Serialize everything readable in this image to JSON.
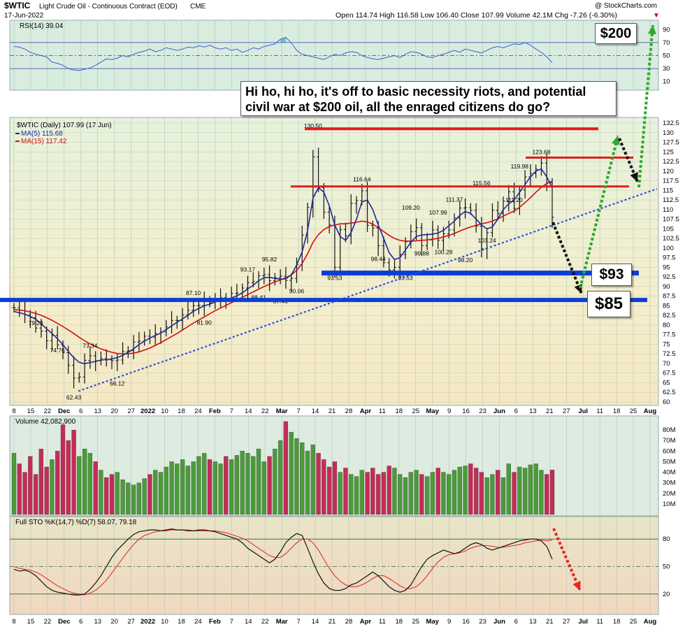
{
  "header": {
    "symbol": "$WTIC",
    "description": "Light Crude Oil - Continuous Contract (EOD)",
    "exchange": "CME",
    "date": "17-Jun-2022",
    "watermark": "@ StockCharts.com",
    "ohlc": "Open 114.74  High 116.58  Low 106.40  Close 107.99  Volume 42.1M  Chg -7.26 (-6.30%)",
    "chg_marker": "▼"
  },
  "annotations": {
    "main": "Hi ho, hi ho, it's off to basic necessity riots, and potential civil war at $200 oil, all the enraged citizens do go?",
    "target_200": "$200",
    "level_93": "$93",
    "level_85": "$85"
  },
  "colors": {
    "rsi_bg": "#d8ece0",
    "price_bg": "#f3eed0",
    "volume_bg": "#ddebe0",
    "sto_bg": "#f2dcc4",
    "ma5": "#1c2a9a",
    "ma15": "#d01010",
    "resistance": "#e31b1b",
    "support": "#0a3fd6",
    "trendline": "#2a4fd8",
    "up_arrow": "#2ea82e",
    "down_arrow": "#111111",
    "sto_arrow": "#e52626",
    "vol_up": "#4c9a3c",
    "vol_down": "#c52c57"
  },
  "chart_data": [
    {
      "type": "line",
      "name": "rsi_panel",
      "legend": "RSI(14) 39.04",
      "ylim": [
        0,
        100
      ],
      "y_ticks": [
        90,
        70,
        50,
        30,
        10
      ],
      "ref_lines": [
        70,
        50,
        30
      ],
      "values": [
        64,
        63,
        60,
        55,
        52,
        50,
        48,
        40,
        38,
        35,
        30,
        28,
        27,
        29,
        31,
        35,
        40,
        45,
        44,
        46,
        50,
        48,
        52,
        55,
        57,
        60,
        56,
        58,
        62,
        60,
        58,
        60,
        63,
        62,
        65,
        63,
        66,
        62,
        60,
        62,
        58,
        60,
        55,
        58,
        62,
        60,
        64,
        66,
        68,
        75,
        78,
        70,
        58,
        52,
        50,
        48,
        46,
        44,
        48,
        52,
        50,
        54,
        56,
        55,
        50,
        47,
        45,
        44,
        46,
        48,
        50,
        47,
        52,
        56,
        55,
        52,
        48,
        47,
        50,
        52,
        55,
        58,
        55,
        60,
        58,
        56,
        54,
        58,
        62,
        64,
        62,
        65,
        68,
        67,
        70,
        66,
        60,
        55,
        48,
        39.04
      ]
    },
    {
      "type": "line",
      "name": "price_panel",
      "legend": [
        "$WTIC (Daily) 107.99 (17 Jun)",
        "MA(5) 115.68",
        "MA(15) 117.42"
      ],
      "ylim": [
        60.0,
        132.5
      ],
      "y_ticks": [
        132.5,
        130.0,
        127.5,
        125.0,
        122.5,
        120.0,
        117.5,
        115.0,
        112.5,
        110.0,
        107.5,
        105.0,
        102.5,
        100.0,
        97.5,
        95.0,
        92.5,
        90.0,
        87.5,
        85.0,
        82.5,
        80.0,
        77.5,
        75.0,
        72.5,
        70.0,
        67.5,
        65.0,
        62.5,
        60.0
      ],
      "x_tick_labels": [
        "8",
        "15",
        "22",
        "Dec",
        "6",
        "13",
        "20",
        "27",
        "2022",
        "10",
        "18",
        "24",
        "Feb",
        "7",
        "14",
        "22",
        "Mar",
        "7",
        "14",
        "21",
        "28",
        "Apr",
        "11",
        "18",
        "25",
        "May",
        "9",
        "16",
        "23",
        "Jun",
        "6",
        "13",
        "21",
        "27",
        "Jul",
        "11",
        "18",
        "25",
        "Aug"
      ],
      "close": [
        84.5,
        83.8,
        82.7,
        81.9,
        79.2,
        78.4,
        75.9,
        77.3,
        74.8,
        72.8,
        69.5,
        66.2,
        66.5,
        70.8,
        72.0,
        70.7,
        71.3,
        70.9,
        70.7,
        70.9,
        73.1,
        73.3,
        75.6,
        75.8,
        77.1,
        76.8,
        77.8,
        78.2,
        79.5,
        81.2,
        81.2,
        82.6,
        83.8,
        85.0,
        85.1,
        86.3,
        85.8,
        86.5,
        87.1,
        86.9,
        88.2,
        88.3,
        89.6,
        91.0,
        91.3,
        92.8,
        93.1,
        91.5,
        92.3,
        92.7,
        91.6,
        92.1,
        95.7,
        103.4,
        110.6,
        123.7,
        115.7,
        109.3,
        106.0,
        95.0,
        104.8,
        103.2,
        111.6,
        112.3,
        114.9,
        105.9,
        105.2,
        100.6,
        96.2,
        94.3,
        95.0,
        98.3,
        101.6,
        104.3,
        105.3,
        100.6,
        102.1,
        104.7,
        102.0,
        103.7,
        104.7,
        107.8,
        110.4,
        110.5,
        109.8,
        105.7,
        99.8,
        104.0,
        109.8,
        109.0,
        112.2,
        114.6,
        110.3,
        115.1,
        118.5,
        119.4,
        120.5,
        122.1,
        117.0,
        107.99
      ],
      "ma5": [
        83.5,
        83.2,
        82.8,
        82.2,
        81.5,
        80.3,
        79.0,
        77.8,
        76.4,
        74.9,
        73.1,
        71.5,
        70.3,
        69.9,
        70.3,
        70.5,
        70.9,
        71.0,
        71.2,
        71.5,
        72.1,
        72.9,
        73.8,
        74.9,
        75.8,
        76.6,
        77.3,
        77.9,
        78.8,
        79.8,
        80.7,
        81.6,
        82.5,
        83.6,
        84.3,
        85.0,
        85.4,
        86.0,
        86.4,
        86.6,
        87.0,
        87.6,
        88.3,
        89.4,
        90.3,
        91.5,
        92.3,
        92.4,
        92.1,
        91.9,
        92.0,
        93.0,
        95.6,
        99.0,
        104.5,
        113.0,
        115.7,
        114.5,
        111.0,
        106.0,
        103.0,
        102.0,
        104.0,
        107.5,
        112.0,
        112.5,
        110.0,
        106.0,
        102.5,
        98.8,
        97.0,
        97.5,
        99.5,
        101.5,
        103.0,
        103.4,
        103.5,
        103.6,
        103.9,
        104.6,
        105.8,
        107.0,
        108.5,
        109.5,
        109.0,
        107.5,
        106.0,
        105.0,
        105.5,
        107.5,
        110.0,
        111.5,
        112.5,
        114.5,
        116.5,
        118.5,
        120.0,
        120.6,
        118.5,
        115.68
      ],
      "ma15": [
        84.0,
        83.9,
        83.7,
        83.4,
        83.0,
        82.5,
        81.9,
        81.2,
        80.4,
        79.6,
        78.7,
        77.8,
        76.8,
        75.9,
        75.1,
        74.4,
        73.8,
        73.3,
        72.9,
        72.6,
        72.5,
        72.5,
        72.7,
        73.0,
        73.5,
        74.0,
        74.7,
        75.4,
        76.2,
        77.0,
        77.8,
        78.7,
        79.6,
        80.5,
        81.3,
        82.1,
        82.9,
        83.7,
        84.4,
        85.1,
        85.8,
        86.5,
        87.2,
        87.9,
        88.6,
        89.3,
        90.0,
        90.6,
        91.2,
        91.7,
        92.3,
        93.0,
        94.2,
        96.0,
        98.5,
        101.5,
        103.5,
        104.8,
        105.6,
        106.0,
        106.3,
        106.3,
        106.5,
        106.7,
        107.0,
        106.8,
        106.2,
        105.3,
        104.3,
        103.3,
        102.5,
        102.0,
        101.8,
        101.8,
        101.9,
        102.0,
        102.1,
        102.3,
        102.5,
        102.9,
        103.3,
        103.8,
        104.4,
        105.0,
        105.5,
        105.9,
        106.3,
        106.6,
        107.0,
        107.6,
        108.3,
        109.0,
        109.6,
        110.6,
        111.8,
        113.1,
        114.5,
        115.8,
        116.8,
        117.42
      ],
      "value_labels": [
        {
          "index": 4,
          "text": "79.23"
        },
        {
          "index": 8,
          "text": "74.76"
        },
        {
          "index": 11,
          "text": "62.43"
        },
        {
          "index": 14,
          "text": "73.34"
        },
        {
          "index": 19,
          "text": "66.12"
        },
        {
          "index": 33,
          "text": "87.10"
        },
        {
          "index": 35,
          "text": "81.90"
        },
        {
          "index": 43,
          "text": "93.17"
        },
        {
          "index": 45,
          "text": "88.41"
        },
        {
          "index": 47,
          "text": "95.82"
        },
        {
          "index": 49,
          "text": "87.46"
        },
        {
          "index": 52,
          "text": "90.06"
        },
        {
          "index": 55,
          "text": "130.50"
        },
        {
          "index": 59,
          "text": "93.53"
        },
        {
          "index": 64,
          "text": "116.64"
        },
        {
          "index": 67,
          "text": "98.44"
        },
        {
          "index": 73,
          "text": "109.20"
        },
        {
          "index": 72,
          "text": "93.53"
        },
        {
          "index": 75,
          "text": "99.88"
        },
        {
          "index": 78,
          "text": "107.99"
        },
        {
          "index": 79,
          "text": "100.28"
        },
        {
          "index": 81,
          "text": "111.37"
        },
        {
          "index": 83,
          "text": "98.20"
        },
        {
          "index": 86,
          "text": "115.56"
        },
        {
          "index": 87,
          "text": "103.24"
        },
        {
          "index": 93,
          "text": "119.98"
        },
        {
          "index": 92,
          "text": "111.20"
        },
        {
          "index": 97,
          "text": "123.68"
        }
      ],
      "levels": {
        "resistance": [
          131.0,
          123.5,
          116.0
        ],
        "support": [
          93.5,
          86.5
        ]
      }
    },
    {
      "type": "bar",
      "name": "volume_panel",
      "legend": "Volume 42,082,900",
      "ylim": [
        0,
        90
      ],
      "y_tick_labels": [
        "80M",
        "70M",
        "60M",
        "50M",
        "40M",
        "30M",
        "20M",
        "10M"
      ],
      "y_ticks": [
        80,
        70,
        60,
        50,
        40,
        30,
        20,
        10
      ],
      "values": [
        58,
        48,
        40,
        55,
        38,
        62,
        45,
        52,
        60,
        85,
        70,
        80,
        55,
        62,
        58,
        50,
        42,
        35,
        38,
        40,
        33,
        30,
        28,
        30,
        34,
        38,
        42,
        40,
        45,
        50,
        48,
        52,
        46,
        50,
        55,
        58,
        52,
        50,
        48,
        55,
        52,
        56,
        60,
        58,
        55,
        62,
        50,
        55,
        62,
        70,
        88,
        78,
        72,
        68,
        60,
        66,
        58,
        52,
        45,
        50,
        40,
        44,
        38,
        36,
        42,
        40,
        44,
        38,
        40,
        46,
        44,
        38,
        35,
        40,
        42,
        38,
        36,
        40,
        44,
        40,
        38,
        42,
        45,
        46,
        48,
        44,
        40,
        35,
        38,
        42,
        35,
        48,
        40,
        45,
        44,
        47,
        48,
        42,
        38,
        42.1
      ]
    },
    {
      "type": "line",
      "name": "sto_panel",
      "legend": "Full STO %K(14,7) %D(7) 58.07, 79.18",
      "ylim": [
        0,
        100
      ],
      "y_ticks": [
        80,
        50,
        20
      ],
      "k": [
        47,
        45,
        46,
        44,
        40,
        34,
        28,
        24,
        22,
        21,
        20,
        19,
        19,
        20,
        25,
        32,
        40,
        50,
        60,
        68,
        74,
        80,
        85,
        88,
        89,
        90,
        90,
        89,
        90,
        91,
        90,
        90,
        89,
        89,
        90,
        90,
        89,
        88,
        86,
        84,
        82,
        80,
        76,
        70,
        66,
        62,
        58,
        54,
        58,
        66,
        76,
        82,
        86,
        84,
        70,
        55,
        42,
        32,
        26,
        24,
        24,
        26,
        30,
        32,
        36,
        40,
        44,
        40,
        34,
        28,
        24,
        22,
        24,
        30,
        40,
        50,
        58,
        62,
        65,
        68,
        66,
        64,
        66,
        70,
        74,
        76,
        74,
        70,
        68,
        70,
        72,
        74,
        76,
        78,
        79,
        80,
        80,
        78,
        72,
        58.07
      ],
      "d": [
        50,
        48,
        47,
        46,
        44,
        41,
        37,
        33,
        29,
        26,
        23,
        21,
        20,
        19,
        21,
        24,
        29,
        35,
        43,
        51,
        59,
        67,
        74,
        80,
        84,
        86,
        88,
        89,
        89,
        90,
        90,
        90,
        90,
        89,
        89,
        89,
        89,
        89,
        88,
        87,
        85,
        83,
        81,
        78,
        74,
        70,
        66,
        62,
        60,
        60,
        64,
        70,
        76,
        80,
        80,
        76,
        68,
        58,
        48,
        40,
        34,
        30,
        28,
        28,
        30,
        33,
        37,
        40,
        40,
        37,
        33,
        29,
        26,
        26,
        28,
        33,
        40,
        48,
        55,
        60,
        63,
        64,
        65,
        67,
        70,
        72,
        73,
        73,
        72,
        71,
        71,
        72,
        73,
        74,
        76,
        77,
        78,
        79,
        78,
        79.18
      ]
    },
    {
      "type": "line",
      "name": "bottom_axis",
      "x_tick_labels": [
        "8",
        "15",
        "22",
        "Dec",
        "6",
        "13",
        "20",
        "27",
        "2022",
        "10",
        "18",
        "24",
        "Feb",
        "7",
        "14",
        "22",
        "Mar",
        "7",
        "14",
        "21",
        "28",
        "Apr",
        "11",
        "18",
        "25",
        "May",
        "9",
        "16",
        "23",
        "Jun",
        "6",
        "13",
        "21",
        "27",
        "Jul",
        "11",
        "18",
        "25",
        "Aug"
      ]
    }
  ]
}
